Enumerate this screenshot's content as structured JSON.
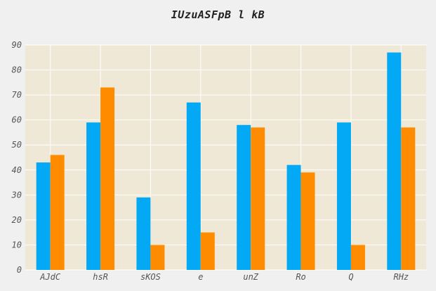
{
  "chart_data": {
    "type": "bar",
    "title": "IUzuASFpB l kB",
    "xlabel": "",
    "ylabel": "",
    "ylim": [
      0,
      90
    ],
    "yticks": [
      0,
      10,
      20,
      30,
      40,
      50,
      60,
      70,
      80,
      90
    ],
    "grid": true,
    "legend": "none",
    "categories": [
      "AJdC",
      "hsR",
      "sKOS",
      "e",
      "unZ",
      "Ro",
      "Q",
      "RHz"
    ],
    "series": [
      {
        "color": "#03a9f4",
        "values": [
          43,
          59,
          29,
          67,
          58,
          42,
          59,
          87
        ]
      },
      {
        "color": "#ff8c00",
        "values": [
          46,
          73,
          10,
          15,
          57,
          39,
          10,
          57
        ]
      }
    ]
  },
  "colors": {
    "background": "#f0f0f0",
    "plot_background": "#efe8d6",
    "grid": "#ffffff",
    "tick_text": "#555555"
  }
}
